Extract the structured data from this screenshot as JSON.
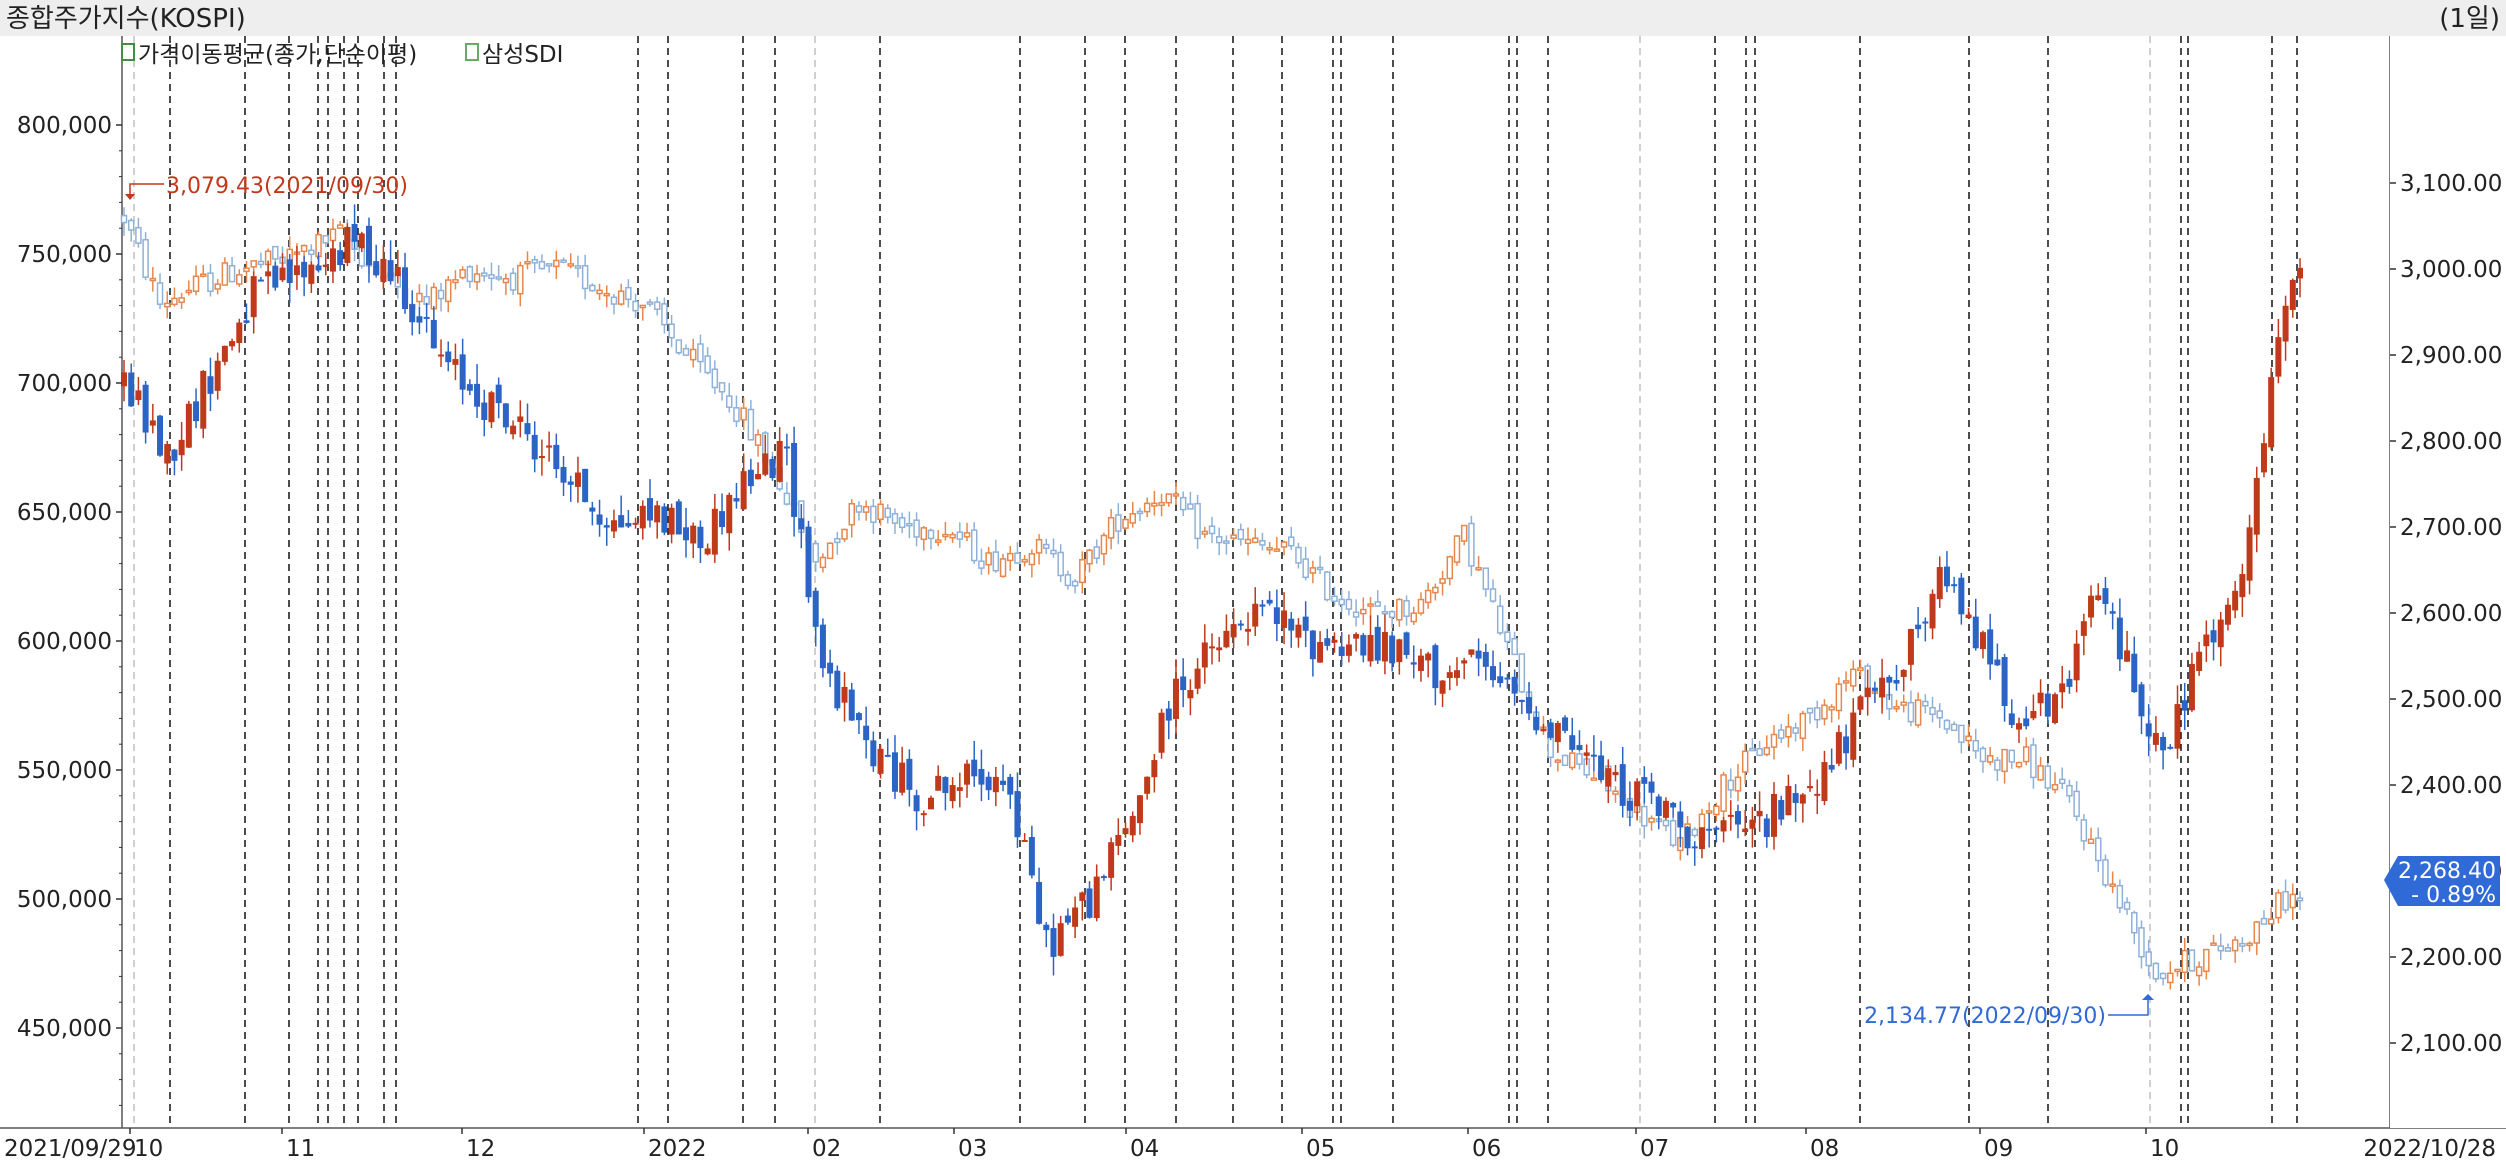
{
  "header": {
    "title": "종합주가지수(KOSPI)",
    "period": "(1일)"
  },
  "legend": [
    {
      "label": "가격이동평균(종가,단순이평)",
      "color": "#3f8f3f"
    },
    {
      "label": "삼성SDI",
      "color": "#6aa86a"
    }
  ],
  "colors": {
    "up_bold": "#c0391b",
    "down_bold": "#2b64c4",
    "up_light": "#e7874c",
    "down_light": "#8fb1d8",
    "price_badge": "#2f6ad6",
    "max_label": "#c0391b",
    "min_label": "#2f6ad6"
  },
  "annotations": {
    "max": "3,079.43(2021/09/30)",
    "min": "2,134.77(2022/09/30)"
  },
  "current_badge": {
    "price": "2,268.40",
    "change": "- 0.89%"
  },
  "chart_data": {
    "type": "candlestick",
    "x_range": [
      "2021/09/29",
      "2022/10/28"
    ],
    "x_tick_labels": [
      "2021/09/29",
      "10",
      "11",
      "12",
      "2022",
      "02",
      "03",
      "04",
      "05",
      "06",
      "07",
      "08",
      "09",
      "10",
      "2022/10/28"
    ],
    "left_axis": {
      "series": "삼성SDI",
      "ylim": [
        420000,
        820000
      ],
      "tick_labels": [
        "800,000",
        "750,000",
        "700,000",
        "650,000",
        "600,000",
        "550,000",
        "500,000",
        "450,000"
      ]
    },
    "right_axis": {
      "series": "종합주가지수(KOSPI)",
      "ylim": [
        2050,
        3250
      ],
      "tick_labels": [
        "3,100.00",
        "3,000.00",
        "2,900.00",
        "2,800.00",
        "2,700.00",
        "2,600.00",
        "2,500.00",
        "2,400.00",
        "2,300.00",
        "2,200.00",
        "2,100.00"
      ]
    },
    "series": [
      {
        "name": "삼성SDI",
        "anchors": [
          [
            0,
            700000
          ],
          [
            6,
            672000
          ],
          [
            12,
            703000
          ],
          [
            18,
            734000
          ],
          [
            24,
            742000
          ],
          [
            32,
            755000
          ],
          [
            38,
            742000
          ],
          [
            44,
            708000
          ],
          [
            50,
            693000
          ],
          [
            56,
            680000
          ],
          [
            62,
            662000
          ],
          [
            68,
            645000
          ],
          [
            74,
            650000
          ],
          [
            80,
            638000
          ],
          [
            86,
            662000
          ],
          [
            92,
            672000
          ],
          [
            97,
            590000
          ],
          [
            103,
            560000
          ],
          [
            110,
            540000
          ],
          [
            116,
            545000
          ],
          [
            122,
            550000
          ],
          [
            128,
            482000
          ],
          [
            134,
            500000
          ],
          [
            140,
            532000
          ],
          [
            146,
            582000
          ],
          [
            152,
            598000
          ],
          [
            158,
            612000
          ],
          [
            164,
            600000
          ],
          [
            170,
            600000
          ],
          [
            176,
            595000
          ],
          [
            182,
            588000
          ],
          [
            188,
            590000
          ],
          [
            194,
            575000
          ],
          [
            200,
            565000
          ],
          [
            206,
            545000
          ],
          [
            212,
            538000
          ],
          [
            218,
            525000
          ],
          [
            224,
            525000
          ],
          [
            230,
            535000
          ],
          [
            236,
            550000
          ],
          [
            242,
            575000
          ],
          [
            248,
            598000
          ],
          [
            252,
            622000
          ],
          [
            256,
            610000
          ],
          [
            262,
            575000
          ],
          [
            268,
            572000
          ],
          [
            274,
            620000
          ],
          [
            278,
            592000
          ],
          [
            283,
            553000
          ],
          [
            288,
            595000
          ],
          [
            293,
            612000
          ],
          [
            296,
            660000
          ],
          [
            300,
            730000
          ],
          [
            302,
            740000
          ]
        ]
      },
      {
        "name": "종합주가지수(KOSPI)",
        "anchors": [
          [
            0,
            3060
          ],
          [
            5,
            2960
          ],
          [
            10,
            2980
          ],
          [
            16,
            3000
          ],
          [
            22,
            3010
          ],
          [
            30,
            3040
          ],
          [
            36,
            2990
          ],
          [
            42,
            2960
          ],
          [
            48,
            3000
          ],
          [
            54,
            2990
          ],
          [
            60,
            3000
          ],
          [
            66,
            2980
          ],
          [
            72,
            2960
          ],
          [
            78,
            2900
          ],
          [
            84,
            2850
          ],
          [
            90,
            2770
          ],
          [
            96,
            2660
          ],
          [
            102,
            2730
          ],
          [
            108,
            2700
          ],
          [
            114,
            2700
          ],
          [
            120,
            2660
          ],
          [
            126,
            2680
          ],
          [
            132,
            2640
          ],
          [
            138,
            2710
          ],
          [
            144,
            2740
          ],
          [
            150,
            2690
          ],
          [
            156,
            2680
          ],
          [
            162,
            2670
          ],
          [
            168,
            2620
          ],
          [
            174,
            2600
          ],
          [
            180,
            2610
          ],
          [
            186,
            2690
          ],
          [
            192,
            2560
          ],
          [
            198,
            2440
          ],
          [
            204,
            2410
          ],
          [
            210,
            2370
          ],
          [
            216,
            2330
          ],
          [
            222,
            2400
          ],
          [
            228,
            2450
          ],
          [
            234,
            2480
          ],
          [
            240,
            2530
          ],
          [
            246,
            2490
          ],
          [
            252,
            2480
          ],
          [
            258,
            2430
          ],
          [
            264,
            2430
          ],
          [
            270,
            2380
          ],
          [
            276,
            2280
          ],
          [
            282,
            2180
          ],
          [
            288,
            2200
          ],
          [
            294,
            2220
          ],
          [
            300,
            2268
          ]
        ]
      }
    ],
    "max_label": {
      "value": 3079.43,
      "date": "2021/09/30"
    },
    "min_label": {
      "value": 2134.77,
      "date": "2022/09/30"
    }
  }
}
